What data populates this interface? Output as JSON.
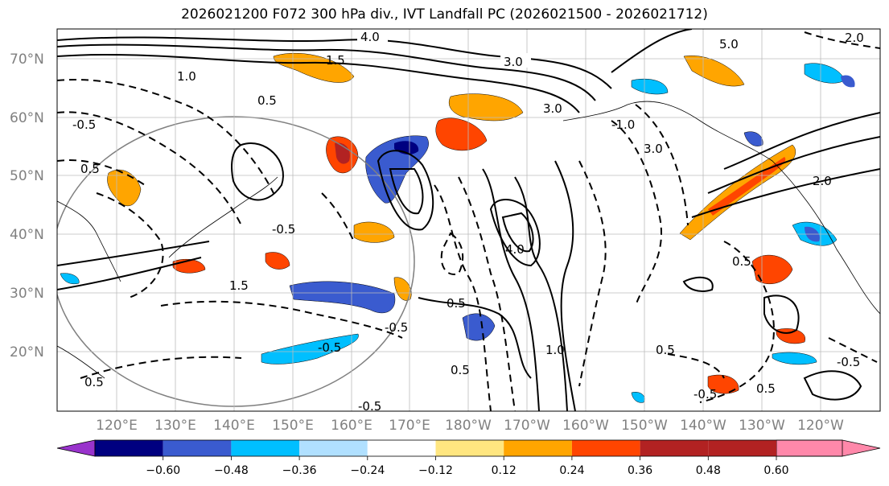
{
  "title": "2026021200 F072 300 hPa div., IVT Landfall PC (2026021500 - 2026021712)",
  "lat_labels": [
    "70°N",
    "60°N",
    "50°N",
    "40°N",
    "30°N",
    "20°N"
  ],
  "lon_labels": [
    "120°E",
    "130°E",
    "140°E",
    "150°E",
    "160°E",
    "170°E",
    "180°W",
    "170°W",
    "160°W",
    "150°W",
    "140°W",
    "130°W",
    "120°W"
  ],
  "colorbar": {
    "colors": [
      "#9933cc",
      "#000080",
      "#3a5bcf",
      "#00bfff",
      "#b0e0ff",
      "#ffffff",
      "#ffe680",
      "#ffa500",
      "#ff4500",
      "#b22222",
      "#ff88aa"
    ],
    "ticks": [
      "−0.60",
      "−0.48",
      "−0.36",
      "−0.24",
      "−0.12",
      "0.12",
      "0.24",
      "0.36",
      "0.48",
      "0.60"
    ]
  },
  "contour_labels": [
    "4.0",
    "3.0",
    "5.0",
    "2.0",
    "1.5",
    "0.5",
    "-0.5",
    "1.0",
    "3.0",
    "-1.0",
    "2.0",
    "4.0",
    "0.5",
    "-0.5",
    "1.5",
    "-0.5",
    "0.5",
    "3.0",
    "0.5",
    "-0.5",
    "0.5",
    "-0.5",
    "0.5",
    "-0.5",
    "0.5",
    "1.0",
    "-0.5",
    "0.5"
  ]
}
